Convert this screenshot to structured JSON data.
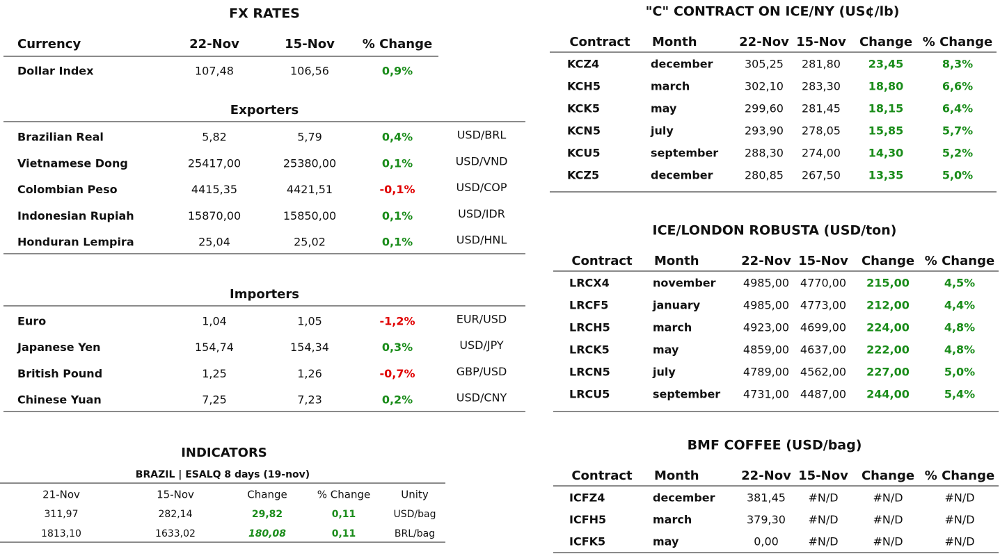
{
  "fx_rates": {
    "title": "FX RATES",
    "header": [
      "Currency",
      "22-Nov",
      "15-Nov",
      "% Change"
    ],
    "rows": [
      [
        "Dollar Index",
        "107,48",
        "106,56",
        "0,9%"
      ]
    ]
  },
  "exporters": {
    "title": "Exporters",
    "rows": [
      [
        "Brazilian Real",
        "5,82",
        "5,79",
        "0,4%",
        "USD/BRL"
      ],
      [
        "Vietnamese Dong",
        "25417,00",
        "25380,00",
        "0,1%",
        "USD/VND"
      ],
      [
        "Colombian Peso",
        "4415,35",
        "4421,51",
        "-0,1%",
        "USD/COP"
      ],
      [
        "Indonesian Rupiah",
        "15870,00",
        "15850,00",
        "0,1%",
        "USD/IDR"
      ],
      [
        "Honduran Lempira",
        "25,04",
        "25,02",
        "0,1%",
        "USD/HNL"
      ]
    ]
  },
  "importers": {
    "title": "Importers",
    "rows": [
      [
        "Euro",
        "1,04",
        "1,05",
        "-1,2%",
        "EUR/USD"
      ],
      [
        "Japanese Yen",
        "154,74",
        "154,34",
        "0,3%",
        "USD/JPY"
      ],
      [
        "British Pound",
        "1,25",
        "1,26",
        "-0,7%",
        "GBP/USD"
      ],
      [
        "Chinese Yuan",
        "7,25",
        "7,23",
        "0,2%",
        "USD/CNY"
      ]
    ]
  },
  "indicators": {
    "title": "INDICATORS",
    "subtitle": "BRAZIL | ESALQ 8 days (19-nov)",
    "header": [
      "21-Nov",
      "15-Nov",
      "Change",
      "% Change",
      "Unity"
    ],
    "rows": [
      [
        "311,97",
        "282,14",
        "29,82",
        "0,11",
        "USD/bag"
      ],
      [
        "1813,10",
        "1633,02",
        "180,08",
        "0,11",
        "BRL/bag"
      ]
    ]
  },
  "c_contract": {
    "title": "\"C\" CONTRACT ON ICE/NY (US¢/lb)",
    "header": [
      "Contract",
      "Month",
      "22-Nov",
      "15-Nov",
      "Change",
      "% Change"
    ],
    "rows": [
      [
        "KCZ4",
        "december",
        "305,25",
        "281,80",
        "23,45",
        "8,3%"
      ],
      [
        "KCH5",
        "march",
        "302,10",
        "283,30",
        "18,80",
        "6,6%"
      ],
      [
        "KCK5",
        "may",
        "299,60",
        "281,45",
        "18,15",
        "6,4%"
      ],
      [
        "KCN5",
        "july",
        "293,90",
        "278,05",
        "15,85",
        "5,7%"
      ],
      [
        "KCU5",
        "september",
        "288,30",
        "274,00",
        "14,30",
        "5,2%"
      ],
      [
        "KCZ5",
        "december",
        "280,85",
        "267,50",
        "13,35",
        "5,0%"
      ]
    ]
  },
  "robusta": {
    "title": "ICE/LONDON ROBUSTA (USD/ton)",
    "header": [
      "Contract",
      "Month",
      "22-Nov",
      "15-Nov",
      "Change",
      "% Change"
    ],
    "rows": [
      [
        "LRCX4",
        "november",
        "4985,00",
        "4770,00",
        "215,00",
        "4,5%"
      ],
      [
        "LRCF5",
        "january",
        "4985,00",
        "4773,00",
        "212,00",
        "4,4%"
      ],
      [
        "LRCH5",
        "march",
        "4923,00",
        "4699,00",
        "224,00",
        "4,8%"
      ],
      [
        "LRCK5",
        "may",
        "4859,00",
        "4637,00",
        "222,00",
        "4,8%"
      ],
      [
        "LRCN5",
        "july",
        "4789,00",
        "4562,00",
        "227,00",
        "5,0%"
      ],
      [
        "LRCU5",
        "september",
        "4731,00",
        "4487,00",
        "244,00",
        "5,4%"
      ]
    ]
  },
  "bmf": {
    "title": "BMF COFFEE (USD/bag)",
    "header": [
      "Contract",
      "Month",
      "22-Nov",
      "15-Nov",
      "Change",
      "% Change"
    ],
    "rows": [
      [
        "ICFZ4",
        "december",
        "381,45",
        "#N/D",
        "#N/D",
        "#N/D"
      ],
      [
        "ICFH5",
        "march",
        "379,30",
        "#N/D",
        "#N/D",
        "#N/D"
      ],
      [
        "ICFK5",
        "may",
        "0,00",
        "#N/D",
        "#N/D",
        "#N/D"
      ]
    ]
  }
}
